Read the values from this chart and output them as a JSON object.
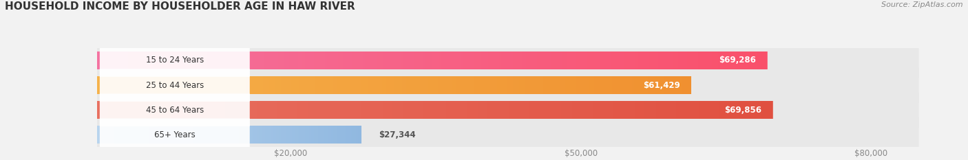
{
  "title": "HOUSEHOLD INCOME BY HOUSEHOLDER AGE IN HAW RIVER",
  "source": "Source: ZipAtlas.com",
  "categories": [
    "15 to 24 Years",
    "25 to 44 Years",
    "45 to 64 Years",
    "65+ Years"
  ],
  "values": [
    69286,
    61429,
    69856,
    27344
  ],
  "bar_colors_left": [
    "#f472a0",
    "#f5b24a",
    "#e87060",
    "#b8d4ee"
  ],
  "bar_colors_right": [
    "#f9506a",
    "#f09030",
    "#e05040",
    "#90b8e0"
  ],
  "label_texts": [
    "$69,286",
    "$61,429",
    "$69,856",
    "$27,344"
  ],
  "xlim_max": 88000,
  "background_color": "#f2f2f2",
  "bar_bg_color": "#e8e8e8",
  "title_fontsize": 11,
  "label_fontsize": 8.5,
  "tick_fontsize": 8.5,
  "source_fontsize": 8
}
